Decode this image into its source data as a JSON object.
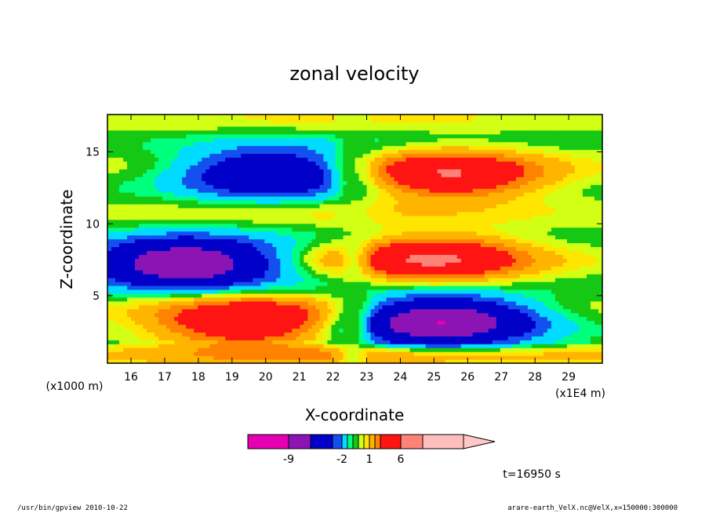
{
  "chart_data": {
    "type": "heatmap",
    "title": "zonal velocity",
    "xlabel": "X-coordinate",
    "ylabel": "Z-coordinate",
    "x_unit_note": "(x1E4 m)",
    "y_unit_note": "(x1000 m)",
    "xlim": [
      15.3,
      30.0
    ],
    "ylim": [
      0.3,
      17.6
    ],
    "x_ticks": [
      "16",
      "17",
      "18",
      "19",
      "20",
      "21",
      "22",
      "23",
      "24",
      "25",
      "26",
      "27",
      "28",
      "29"
    ],
    "x_tick_values": [
      16,
      17,
      18,
      19,
      20,
      21,
      22,
      23,
      24,
      25,
      26,
      27,
      28,
      29
    ],
    "y_ticks": [
      "5",
      "10",
      "15"
    ],
    "y_tick_values": [
      5,
      10,
      15
    ],
    "colorbar": {
      "labels": [
        "-9",
        "-2",
        "1",
        "6"
      ],
      "label_values": [
        -9,
        -2,
        1,
        6
      ],
      "levels": [
        -12,
        -9,
        -6,
        -3,
        -2,
        -1,
        -0.5,
        0,
        0.5,
        1,
        2,
        3,
        6,
        9
      ],
      "colors": [
        "#e600b4",
        "#8c14b4",
        "#0000c8",
        "#1450f0",
        "#00dcff",
        "#00ff7c",
        "#14c814",
        "#d2ff14",
        "#ffe600",
        "#ffb400",
        "#ff8200",
        "#ff1414",
        "#ff8278",
        "#ffbebe"
      ]
    },
    "features": [
      {
        "x": 20.2,
        "z": 13.6,
        "value": -6,
        "kind": "negative core"
      },
      {
        "x": 25.4,
        "z": 13.4,
        "value": 6,
        "kind": "positive core"
      },
      {
        "x": 17.6,
        "z": 7.3,
        "value": -9,
        "kind": "negative core"
      },
      {
        "x": 25.0,
        "z": 7.6,
        "value": 6,
        "kind": "positive core"
      },
      {
        "x": 19.5,
        "z": 3.2,
        "value": 6,
        "kind": "positive core"
      },
      {
        "x": 25.2,
        "z": 3.3,
        "value": -9,
        "kind": "negative core"
      }
    ],
    "time_label": "t=16950 s"
  },
  "footer": {
    "left": "/usr/bin/gpview   2010-10-22",
    "right": "arare-earth_VelX.nc@VelX,x=150000:300000"
  }
}
